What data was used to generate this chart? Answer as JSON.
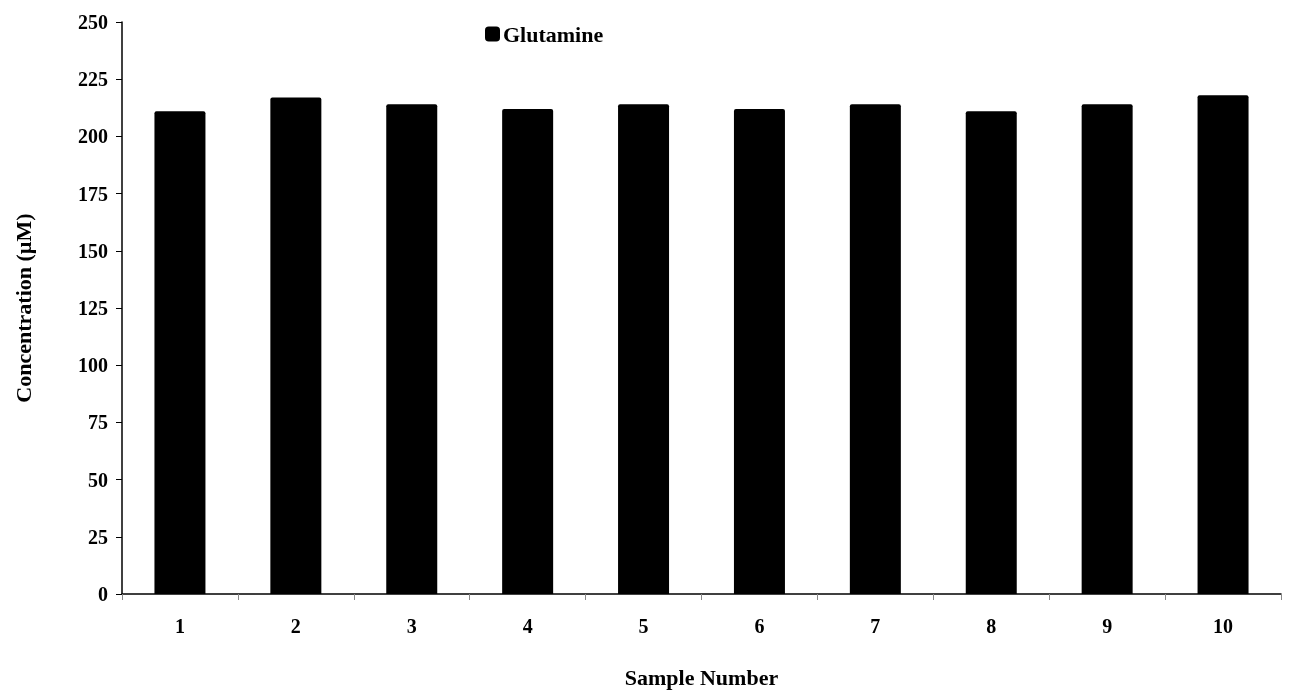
{
  "chart_data": {
    "type": "bar",
    "xlabel": "Sample Number",
    "ylabel": "Concentration (µM)",
    "categories": [
      "1",
      "2",
      "3",
      "4",
      "5",
      "6",
      "7",
      "8",
      "9",
      "10"
    ],
    "series": [
      {
        "name": "Glutamine",
        "color": "#000000",
        "values": [
          211,
          217,
          214,
          212,
          214,
          212,
          214,
          211,
          214,
          218
        ]
      }
    ],
    "ylim": [
      0,
      250
    ],
    "yticks": [
      0,
      25,
      50,
      75,
      100,
      125,
      150,
      175,
      200,
      225,
      250
    ],
    "grid": false,
    "legend": "top"
  }
}
